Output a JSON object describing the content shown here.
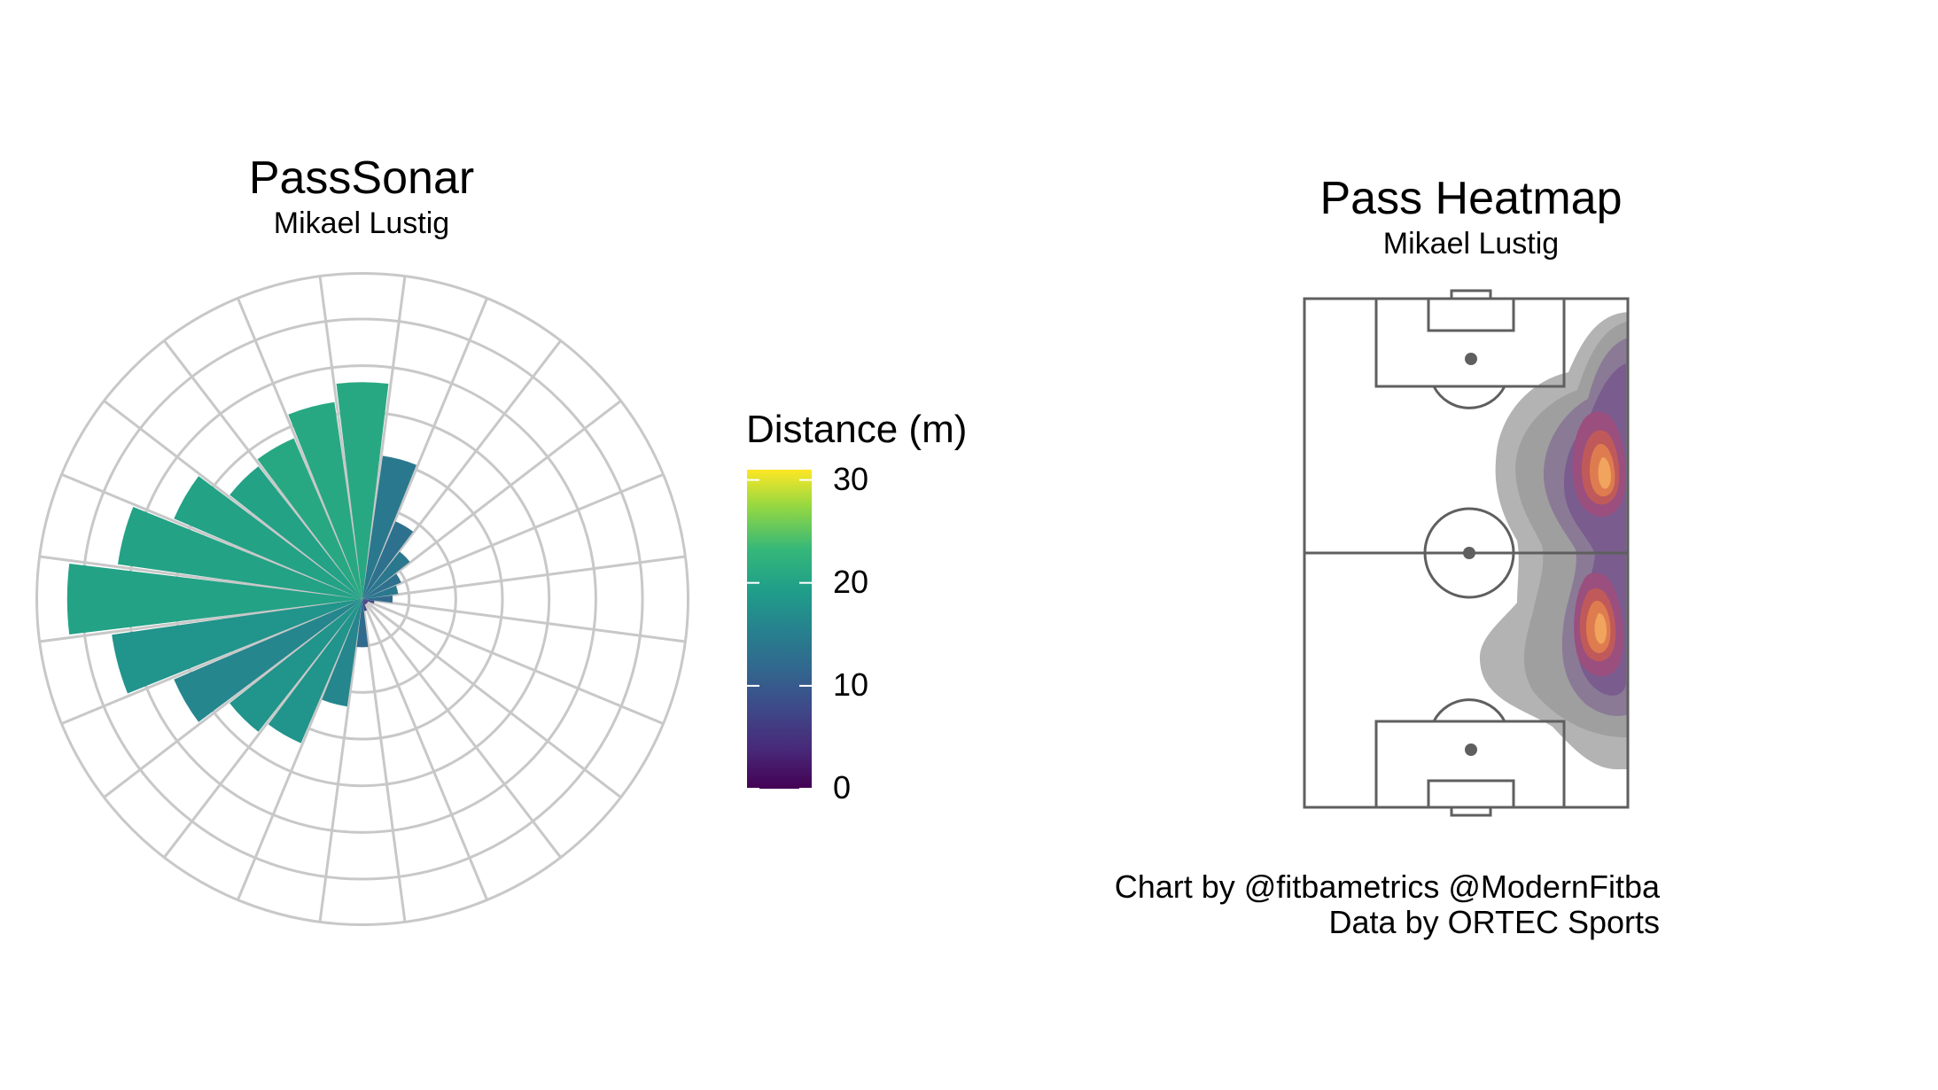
{
  "chart_data": [
    {
      "type": "polar-bar",
      "title": "PassSonar",
      "subtitle": "Mikael Lustig",
      "angle_unit": "degrees_clockwise_from_up",
      "bins": [
        {
          "angle": 0,
          "length": 18,
          "distance": 21
        },
        {
          "angle": 15,
          "length": 12,
          "distance": 14
        },
        {
          "angle": 30,
          "length": 7,
          "distance": 13
        },
        {
          "angle": 45,
          "length": 5,
          "distance": 14
        },
        {
          "angle": 60,
          "length": 3.5,
          "distance": 13
        },
        {
          "angle": 75,
          "length": 3,
          "distance": 14
        },
        {
          "angle": 90,
          "length": 2.5,
          "distance": 12
        },
        {
          "angle": 105,
          "length": 1,
          "distance": 8
        },
        {
          "angle": 120,
          "length": 0.5,
          "distance": 6
        },
        {
          "angle": 135,
          "length": 0.5,
          "distance": 6
        },
        {
          "angle": 150,
          "length": 0.5,
          "distance": 6
        },
        {
          "angle": 165,
          "length": 1,
          "distance": 7
        },
        {
          "angle": 180,
          "length": 4,
          "distance": 12
        },
        {
          "angle": 195,
          "length": 9,
          "distance": 16
        },
        {
          "angle": 210,
          "length": 13,
          "distance": 18
        },
        {
          "angle": 225,
          "length": 14,
          "distance": 18
        },
        {
          "angle": 240,
          "length": 17,
          "distance": 16
        },
        {
          "angle": 255,
          "length": 21,
          "distance": 18
        },
        {
          "angle": 270,
          "length": 24.5,
          "distance": 20
        },
        {
          "angle": 285,
          "length": 20.5,
          "distance": 20
        },
        {
          "angle": 300,
          "length": 17,
          "distance": 20
        },
        {
          "angle": 315,
          "length": 14,
          "distance": 20
        },
        {
          "angle": 330,
          "length": 14.5,
          "distance": 21
        },
        {
          "angle": 345,
          "length": 16.5,
          "distance": 21
        }
      ],
      "color_scale": "viridis",
      "legend": {
        "title": "Distance (m)",
        "ticks": [
          30,
          20,
          10,
          0
        ],
        "min": 0,
        "max": 31
      }
    },
    {
      "type": "heatmap",
      "title": "Pass Heatmap",
      "subtitle": "Mikael Lustig",
      "hotspots": [
        {
          "x_frac": 0.88,
          "y_frac": 0.34
        },
        {
          "x_frac": 0.84,
          "y_frac": 0.64
        }
      ]
    }
  ],
  "caption": {
    "line1": "Chart by @fitbametrics @ModernFitba",
    "line2": "Data by ORTEC Sports"
  },
  "colors": {
    "grid": "#c8c8c8",
    "pitch_line": "#5f5f5f"
  }
}
